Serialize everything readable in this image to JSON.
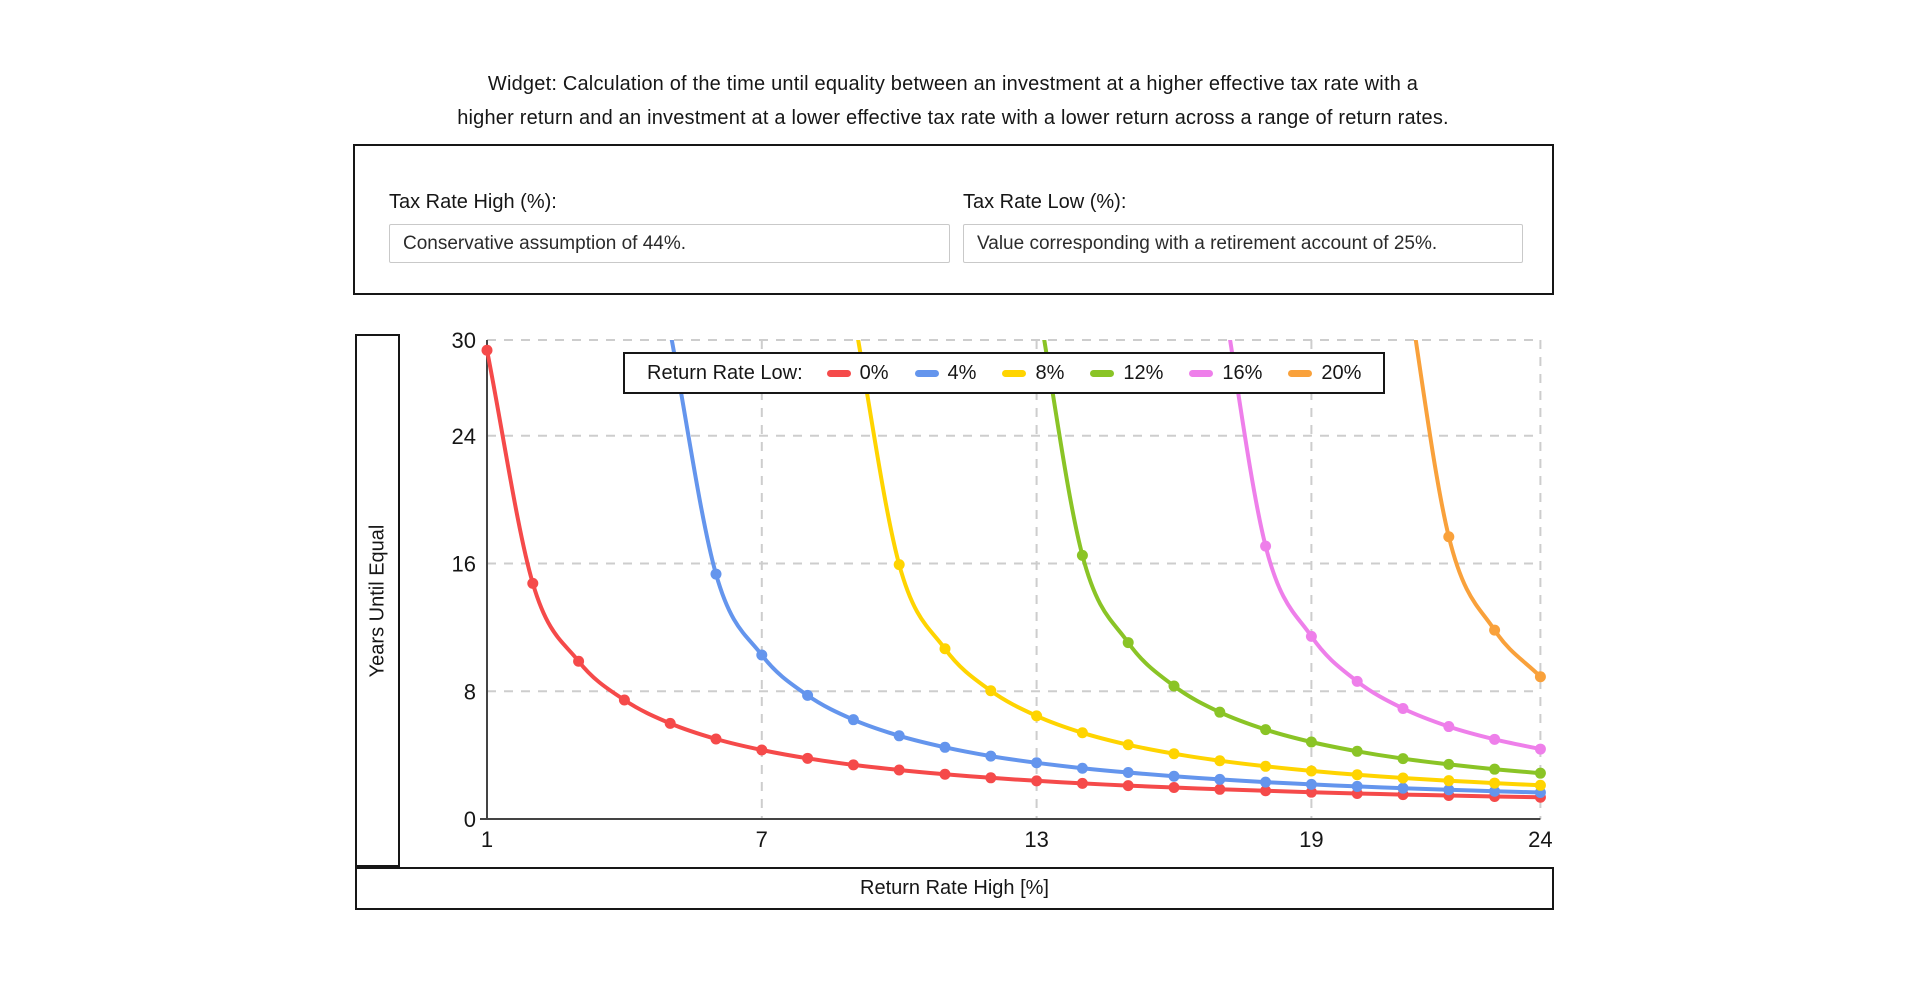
{
  "title": {
    "line1": "Widget: Calculation of the time until equality between an investment at a higher effective tax rate with a",
    "line2": "higher return and an investment at a lower effective tax rate with a lower return across a range of return rates."
  },
  "form": {
    "tax_high": {
      "label": "Tax Rate High (%):",
      "value": "Conservative assumption of 44%."
    },
    "tax_low": {
      "label": "Tax Rate Low (%):",
      "value": "Value corresponding with a retirement account of 25%."
    }
  },
  "chart_data": {
    "type": "line",
    "xlabel": "Return Rate High [%]",
    "ylabel": "Years Until Equal",
    "xlim": [
      1,
      24
    ],
    "ylim": [
      0,
      30
    ],
    "xticks": [
      1,
      7,
      13,
      19,
      24
    ],
    "yticks": [
      0,
      8,
      16,
      24,
      30
    ],
    "grid": true,
    "legend": {
      "title": "Return Rate Low:",
      "position": "top-center"
    },
    "axis_color": "#444444",
    "grid_color": "#cdcdcd",
    "series": [
      {
        "name": "0%",
        "color": "#f54a4a",
        "x": [
          1,
          2,
          3,
          4,
          5,
          6,
          7,
          8,
          9,
          10,
          11,
          12,
          13,
          14,
          15,
          16,
          17,
          18,
          19,
          20,
          21,
          22,
          23,
          24
        ],
        "y": [
          29.36,
          14.76,
          9.88,
          7.45,
          5.99,
          5.01,
          4.32,
          3.8,
          3.39,
          3.07,
          2.8,
          2.58,
          2.39,
          2.23,
          2.09,
          1.97,
          1.86,
          1.77,
          1.68,
          1.6,
          1.53,
          1.47,
          1.41,
          1.36
        ]
      },
      {
        "name": "4%",
        "color": "#6495ed",
        "x": [
          5,
          6,
          7,
          8,
          9,
          10,
          11,
          12,
          13,
          14,
          15,
          16,
          17,
          18,
          19,
          20,
          21,
          22,
          23,
          24
        ],
        "y": [
          30.53,
          15.34,
          10.27,
          7.74,
          6.22,
          5.21,
          4.49,
          3.94,
          3.52,
          3.18,
          2.91,
          2.68,
          2.48,
          2.31,
          2.17,
          2.04,
          1.93,
          1.83,
          1.74,
          1.66
        ]
      },
      {
        "name": "8%",
        "color": "#ffd400",
        "x": [
          9,
          10,
          11,
          12,
          13,
          14,
          15,
          16,
          17,
          18,
          19,
          20,
          21,
          22,
          23,
          24
        ],
        "y": [
          31.7,
          15.93,
          10.66,
          8.03,
          6.46,
          5.4,
          4.65,
          4.09,
          3.65,
          3.3,
          3.01,
          2.77,
          2.57,
          2.4,
          2.25,
          2.11
        ]
      },
      {
        "name": "12%",
        "color": "#8ac426",
        "x": [
          13,
          14,
          15,
          16,
          17,
          18,
          19,
          20,
          21,
          22,
          23,
          24
        ],
        "y": [
          32.87,
          16.51,
          11.05,
          8.33,
          6.69,
          5.6,
          4.82,
          4.24,
          3.78,
          3.42,
          3.12,
          2.87
        ]
      },
      {
        "name": "16%",
        "color": "#ee7fea",
        "x": [
          17,
          18,
          19,
          20,
          21,
          22,
          23,
          24
        ],
        "y": [
          34.04,
          17.09,
          11.44,
          8.62,
          6.92,
          5.79,
          4.99,
          4.38
        ]
      },
      {
        "name": "20%",
        "color": "#f9a13b",
        "x": [
          21,
          22,
          23,
          24
        ],
        "y": [
          35.21,
          17.68,
          11.83,
          8.91
        ]
      }
    ]
  }
}
